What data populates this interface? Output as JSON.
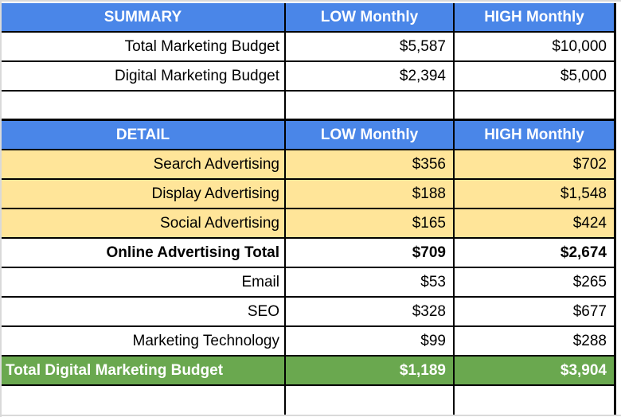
{
  "colors": {
    "header_blue": "#4a86e8",
    "highlight_yellow": "#ffe599",
    "total_green": "#6aa84f",
    "border_black": "#000000",
    "gridline_gray": "#d9d9d9",
    "text_black": "#000000",
    "text_white": "#ffffff"
  },
  "table": {
    "summary": {
      "header": {
        "title": "SUMMARY",
        "low": "LOW Monthly",
        "high": "HIGH Monthly"
      },
      "rows": [
        {
          "label": "Total Marketing Budget",
          "low": "$5,587",
          "high": "$10,000"
        },
        {
          "label": "Digital Marketing Budget",
          "low": "$2,394",
          "high": "$5,000"
        }
      ]
    },
    "detail": {
      "header": {
        "title": "DETAIL",
        "low": "LOW Monthly",
        "high": "HIGH Monthly"
      },
      "ad_rows": [
        {
          "label": "Search Advertising",
          "low": "$356",
          "high": "$702"
        },
        {
          "label": "Display Advertising",
          "low": "$188",
          "high": "$1,548"
        },
        {
          "label": "Social Advertising",
          "low": "$165",
          "high": "$424"
        }
      ],
      "ad_total": {
        "label": "Online Advertising Total",
        "low": "$709",
        "high": "$2,674"
      },
      "other_rows": [
        {
          "label": "Email",
          "low": "$53",
          "high": "$265"
        },
        {
          "label": "SEO",
          "low": "$328",
          "high": "$677"
        },
        {
          "label": "Marketing Technology",
          "low": "$99",
          "high": "$288"
        }
      ],
      "grand_total": {
        "label": "Total Digital Marketing Budget",
        "low": "$1,189",
        "high": "$3,904"
      }
    }
  }
}
